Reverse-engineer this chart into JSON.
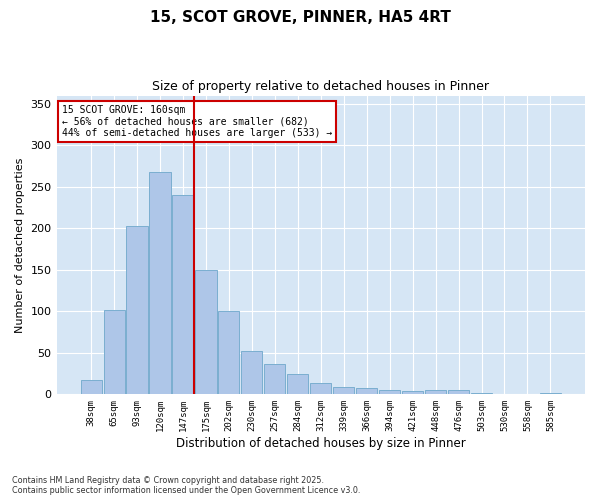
{
  "title1": "15, SCOT GROVE, PINNER, HA5 4RT",
  "title2": "Size of property relative to detached houses in Pinner",
  "xlabel": "Distribution of detached houses by size in Pinner",
  "ylabel": "Number of detached properties",
  "categories": [
    "38sqm",
    "65sqm",
    "93sqm",
    "120sqm",
    "147sqm",
    "175sqm",
    "202sqm",
    "230sqm",
    "257sqm",
    "284sqm",
    "312sqm",
    "339sqm",
    "366sqm",
    "394sqm",
    "421sqm",
    "448sqm",
    "476sqm",
    "503sqm",
    "530sqm",
    "558sqm",
    "585sqm"
  ],
  "values": [
    17,
    102,
    203,
    268,
    240,
    150,
    100,
    52,
    36,
    25,
    14,
    9,
    8,
    5,
    4,
    5,
    5,
    2,
    0,
    0,
    2
  ],
  "bar_color": "#aec6e8",
  "bar_edge_color": "#7aaed0",
  "vline_x": 4.5,
  "vline_color": "#cc0000",
  "annotation_title": "15 SCOT GROVE: 160sqm",
  "annotation_line1": "← 56% of detached houses are smaller (682)",
  "annotation_line2": "44% of semi-detached houses are larger (533) →",
  "annotation_box_color": "#cc0000",
  "ylim": [
    0,
    360
  ],
  "yticks": [
    0,
    50,
    100,
    150,
    200,
    250,
    300,
    350
  ],
  "bg_color": "#d6e6f5",
  "fig_bg_color": "#ffffff",
  "grid_color": "#ffffff",
  "footer1": "Contains HM Land Registry data © Crown copyright and database right 2025.",
  "footer2": "Contains public sector information licensed under the Open Government Licence v3.0."
}
